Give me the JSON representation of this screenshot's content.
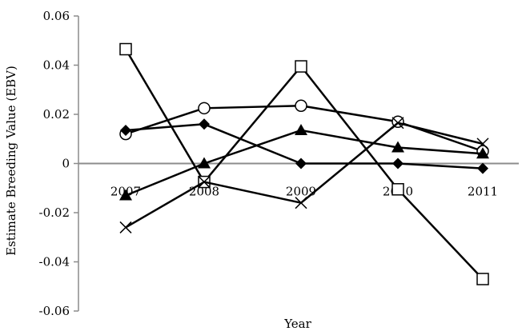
{
  "chart_data": {
    "type": "line",
    "xlabel": "Year",
    "ylabel": "Estimate Breeding Value (EBV)",
    "categories": [
      "2007",
      "2008",
      "2009",
      "2010",
      "2011"
    ],
    "ylim": [
      -0.06,
      0.06
    ],
    "yticks": [
      -0.06,
      -0.04,
      -0.02,
      0,
      0.02,
      0.04,
      0.06
    ],
    "ytick_labels": [
      "-0.06",
      "-0.04",
      "-0.02",
      "0",
      "0.02",
      "0.04",
      "0.06"
    ],
    "grid": false,
    "legend": "none",
    "series": [
      {
        "marker": "open-square",
        "values": [
          0.0465,
          -0.0075,
          0.0395,
          -0.0105,
          -0.047
        ]
      },
      {
        "marker": "open-circle",
        "values": [
          0.012,
          0.0225,
          0.0235,
          0.017,
          0.005
        ]
      },
      {
        "marker": "filled-diamond",
        "values": [
          0.0135,
          0.016,
          0.0,
          0.0,
          -0.002
        ]
      },
      {
        "marker": "filled-triangle",
        "values": [
          -0.013,
          0.0,
          0.0135,
          0.0065,
          0.004
        ]
      },
      {
        "marker": "x",
        "values": [
          -0.026,
          -0.0075,
          -0.016,
          0.0165,
          0.008
        ]
      }
    ],
    "colors": {
      "line": "#000000",
      "zero_axis": "#8c8c8c"
    }
  }
}
